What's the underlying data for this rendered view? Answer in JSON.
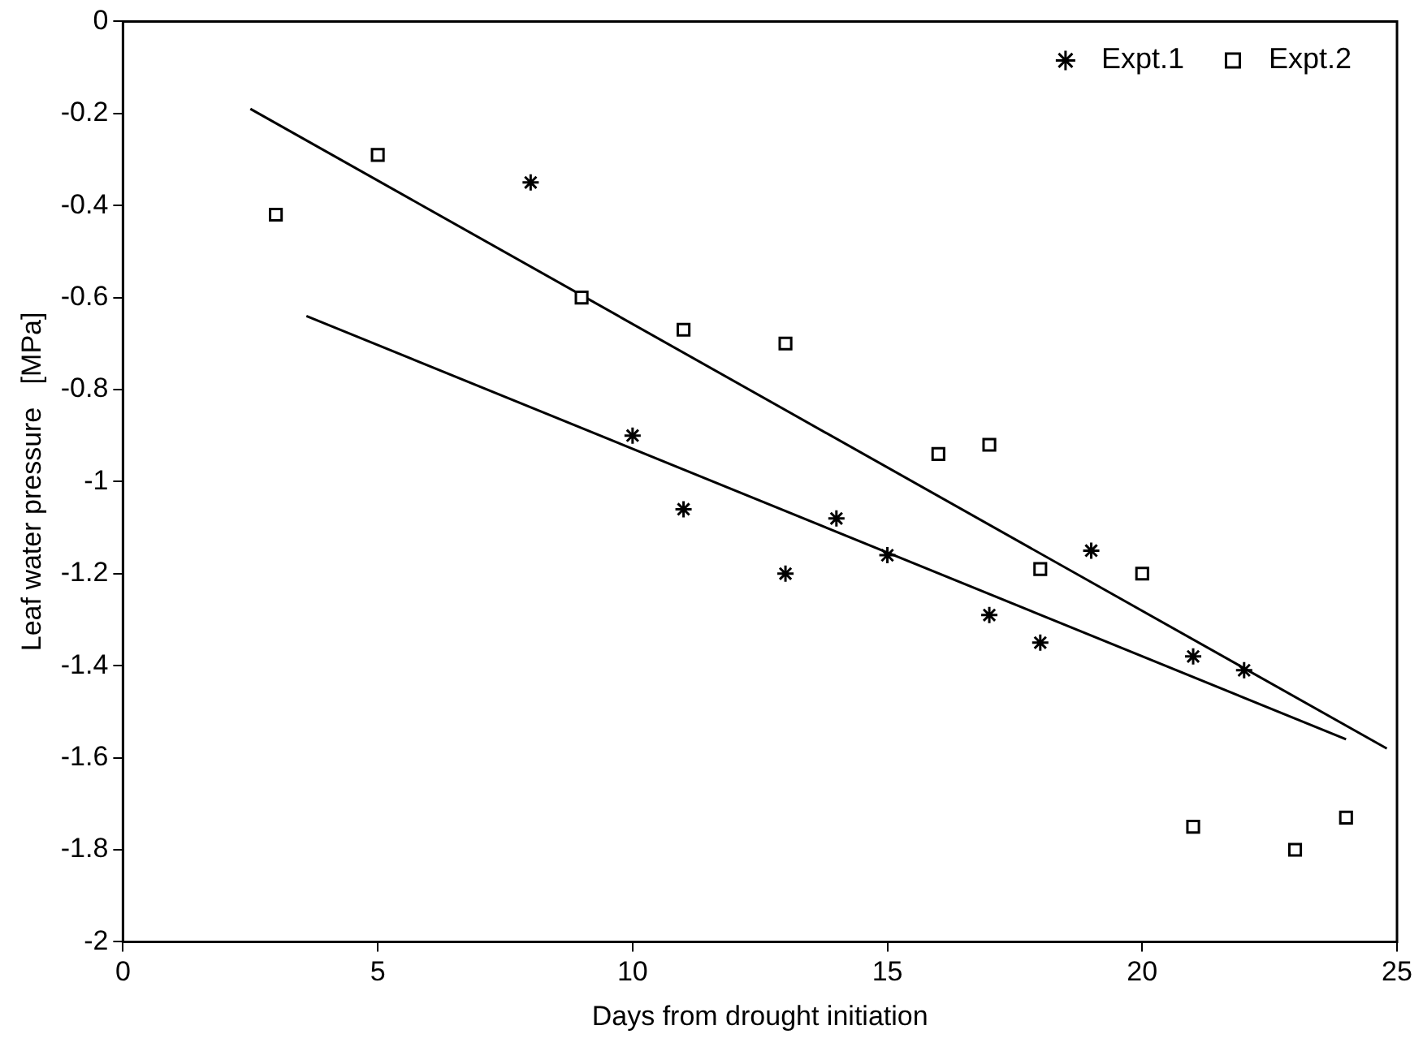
{
  "chart_data": {
    "type": "scatter",
    "xlabel": "Days from drought initiation",
    "ylabel": "Leaf water pressure   [MPa]",
    "xlim": [
      0,
      25
    ],
    "xticks": [
      0,
      5,
      10,
      15,
      20,
      25
    ],
    "ylim": [
      -2,
      0
    ],
    "yticks": [
      {
        "value": -2,
        "label": "-2"
      },
      -1.8,
      -1.6,
      -1.4,
      -1.2,
      {
        "value": -1,
        "label": "-1"
      },
      -0.8,
      -0.6,
      -0.4,
      -0.2,
      0
    ],
    "grid": false,
    "legend": "top right",
    "series": [
      {
        "name": "Expt.1",
        "color": "#000000",
        "marker": "cross",
        "x": [
          8,
          10,
          11,
          13,
          14,
          15,
          17,
          18,
          19,
          21,
          22
        ],
        "values": [
          -0.35,
          -0.9,
          -1.06,
          -1.2,
          -1.08,
          -1.16,
          -1.29,
          -1.35,
          -1.15,
          -1.38,
          -1.41
        ]
      },
      {
        "name": "Expt.2",
        "color": "#000000",
        "marker": "square",
        "x": [
          3,
          5,
          9,
          11,
          13,
          16,
          17,
          18,
          20,
          21,
          23,
          24
        ],
        "values": [
          -0.42,
          -0.29,
          -0.6,
          -0.67,
          -0.7,
          -0.94,
          -0.92,
          -1.19,
          -1.2,
          -1.75,
          -1.8,
          -1.73
        ]
      },
      {
        "type": "line",
        "color": "#000000",
        "marker": "none",
        "x": [
          2.5,
          24.8
        ],
        "values": [
          -0.19,
          -1.58
        ]
      },
      {
        "type": "line",
        "color": "#000000",
        "marker": "none",
        "x": [
          3.6,
          24
        ],
        "values": [
          -0.64,
          -1.56
        ]
      }
    ]
  }
}
